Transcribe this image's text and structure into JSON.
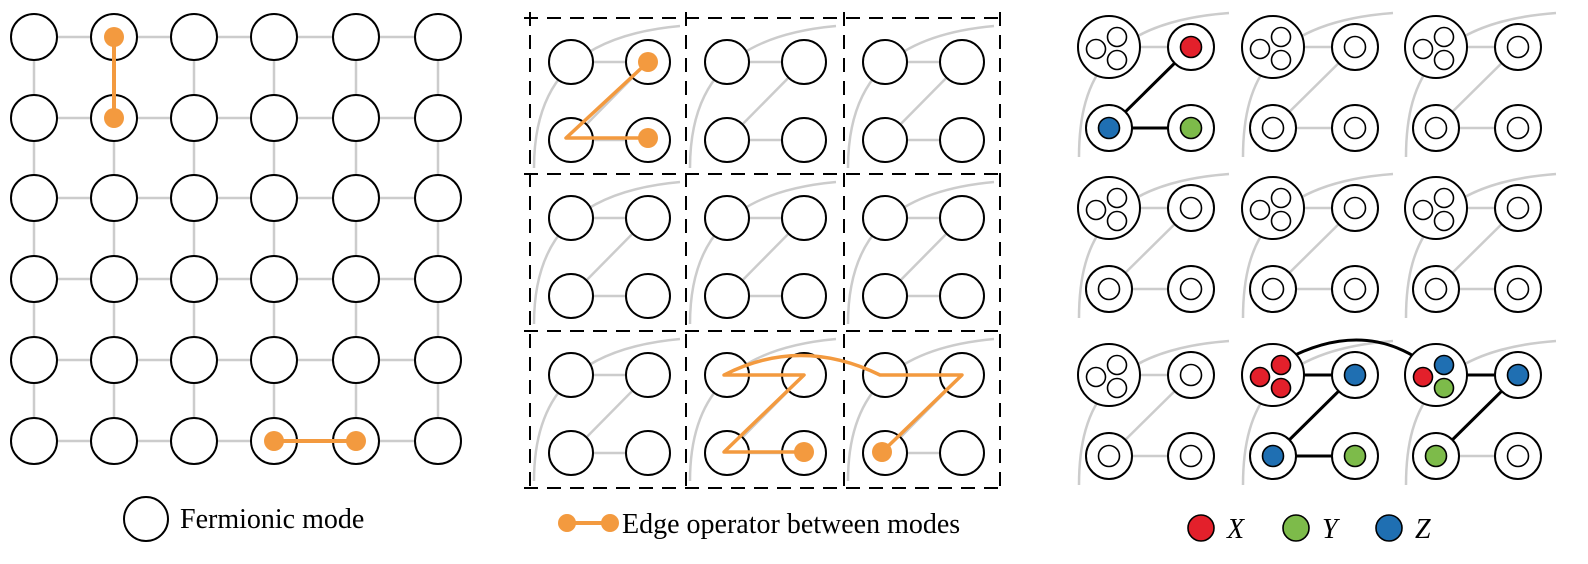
{
  "colors": {
    "edge_operator": "#F39A3F",
    "grid_line": "#CCCCCC",
    "node_stroke": "#000000",
    "x_qubit": "#E3202B",
    "y_qubit": "#7DBB4A",
    "z_qubit": "#1F6FB2"
  },
  "legend": {
    "fermionic_mode": "Fermionic mode",
    "edge_operator": "Edge operator between modes",
    "x_label": "X",
    "y_label": "Y",
    "z_label": "Z"
  }
}
